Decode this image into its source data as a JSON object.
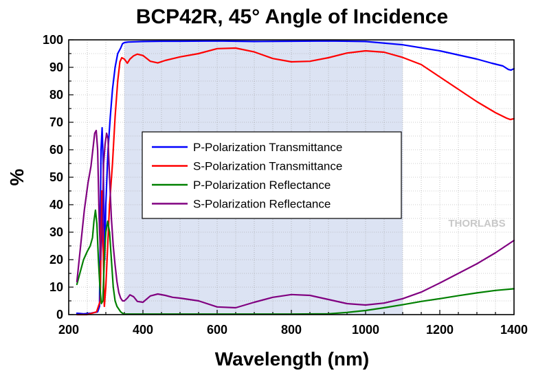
{
  "chart_data": {
    "type": "line",
    "title": "BCP42R, 45° Angle of Incidence",
    "xlabel": "Wavelength (nm)",
    "ylabel": "%",
    "xlim": [
      200,
      1400
    ],
    "ylim": [
      0,
      100
    ],
    "xticks": [
      200,
      400,
      600,
      800,
      1000,
      1200,
      1400
    ],
    "yticks": [
      0,
      10,
      20,
      30,
      40,
      50,
      60,
      70,
      80,
      90,
      100
    ],
    "grid": true,
    "legend_position": "center-left",
    "shaded_region": {
      "x": [
        350,
        1100
      ],
      "color": "#dce3f3"
    },
    "watermark": "THORLABS",
    "series": [
      {
        "name": "P-Polarization Transmittance",
        "color": "#0000ff",
        "x": [
          222,
          240,
          260,
          278,
          283,
          287,
          290,
          293,
          297,
          300,
          306,
          312,
          318,
          325,
          332,
          340,
          345,
          350,
          360,
          380,
          400,
          450,
          500,
          600,
          700,
          800,
          900,
          1000,
          1100,
          1200,
          1300,
          1340,
          1370,
          1385,
          1392,
          1400
        ],
        "y": [
          0.5,
          0.3,
          0.5,
          1,
          3,
          60,
          68,
          55,
          20,
          40,
          60,
          72,
          82,
          90,
          95,
          97,
          98.6,
          99,
          99.2,
          99.3,
          99.4,
          99.5,
          99.5,
          99.6,
          99.4,
          99.5,
          99.6,
          99.4,
          98.2,
          96,
          93,
          91.5,
          90.5,
          89.2,
          89,
          89.5
        ]
      },
      {
        "name": "S-Polarization Transmittance",
        "color": "#ff0000",
        "x": [
          222,
          250,
          275,
          285,
          289,
          292,
          296,
          300,
          305,
          310,
          318,
          325,
          332,
          338,
          343,
          350,
          358,
          365,
          375,
          385,
          400,
          420,
          440,
          460,
          500,
          550,
          600,
          650,
          700,
          750,
          800,
          850,
          900,
          950,
          1000,
          1050,
          1100,
          1150,
          1200,
          1250,
          1300,
          1350,
          1380,
          1390,
          1400
        ],
        "y": [
          0,
          0,
          1,
          5,
          45,
          30,
          3,
          10,
          25,
          40,
          55,
          72,
          85,
          92,
          93.5,
          93,
          91.5,
          93,
          94.2,
          94.8,
          94.3,
          92.2,
          91.6,
          92.5,
          93.8,
          95,
          96.8,
          97,
          95.6,
          93.2,
          92,
          92.2,
          93.5,
          95.2,
          96,
          95.5,
          93.6,
          91,
          86.5,
          82,
          77.5,
          73.5,
          71.5,
          71,
          71.3
        ]
      },
      {
        "name": "P-Polarization Reflectance",
        "color": "#008000",
        "x": [
          222,
          230,
          240,
          250,
          258,
          264,
          268,
          272,
          276,
          280,
          284,
          288,
          292,
          296,
          300,
          305,
          310,
          315,
          320,
          325,
          330,
          335,
          340,
          345,
          350,
          380,
          450,
          600,
          800,
          900,
          950,
          1000,
          1050,
          1100,
          1150,
          1200,
          1250,
          1300,
          1350,
          1400
        ],
        "y": [
          11,
          15,
          20,
          23,
          25,
          28,
          34,
          38,
          33,
          20,
          10,
          4,
          5,
          20,
          30,
          34,
          30,
          20,
          10,
          5,
          3,
          2,
          1,
          0.5,
          0.2,
          0.2,
          0.2,
          0.2,
          0.2,
          0.3,
          0.8,
          1.5,
          2.5,
          3.6,
          4.8,
          5.8,
          6.9,
          7.9,
          8.8,
          9.4
        ]
      },
      {
        "name": "S-Polarization Reflectance",
        "color": "#800080",
        "x": [
          222,
          232,
          242,
          252,
          260,
          265,
          270,
          274,
          278,
          282,
          286,
          290,
          294,
          298,
          302,
          306,
          310,
          315,
          320,
          325,
          330,
          335,
          340,
          345,
          350,
          358,
          365,
          375,
          385,
          400,
          420,
          440,
          460,
          480,
          500,
          550,
          600,
          650,
          700,
          750,
          800,
          850,
          900,
          950,
          1000,
          1050,
          1100,
          1150,
          1200,
          1250,
          1300,
          1350,
          1400
        ],
        "y": [
          12,
          25,
          38,
          48,
          54,
          60,
          66,
          67,
          60,
          35,
          20,
          30,
          55,
          62,
          66,
          64,
          50,
          35,
          25,
          18,
          12,
          8,
          6,
          5,
          5,
          6,
          7.2,
          6.5,
          4.8,
          4.5,
          6.8,
          7.5,
          7,
          6.3,
          6,
          5,
          2.8,
          2.5,
          4.5,
          6.3,
          7.3,
          7,
          5.5,
          4,
          3.5,
          4.2,
          5.8,
          8.2,
          11.5,
          15,
          18.5,
          22.5,
          27
        ]
      }
    ]
  }
}
